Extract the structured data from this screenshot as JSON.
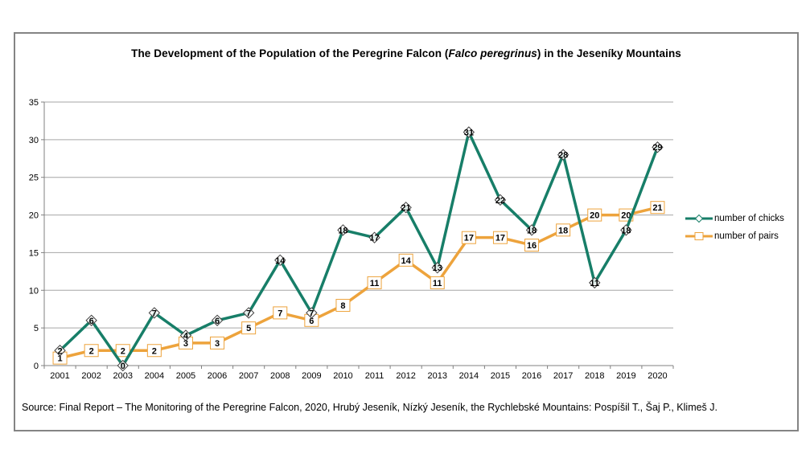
{
  "title": {
    "prefix": "The Development of the Population of the Peregrine Falcon (",
    "italic": "Falco peregrinus",
    "suffix": ") in the Jeseníky Mountains"
  },
  "legend": {
    "chicks": "number of chicks",
    "pairs": "number of pairs"
  },
  "source_note": "Source: Final Report – The Monitoring of the Peregrine Falcon, 2020, Hrubý Jeseník, Nízký Jeseník, the Rychlebské Mountains: Pospíšil T., Šaj P., Klimeš J.",
  "colors": {
    "chicks": "#177E68",
    "pairs": "#EDA33C",
    "gridline": "#A6A6A6",
    "axis": "#808080",
    "marker_stroke": "#404040",
    "label_text": "#000000",
    "frame_border": "#848484"
  },
  "chart_data": {
    "type": "line",
    "x": [
      2001,
      2002,
      2003,
      2004,
      2005,
      2006,
      2007,
      2008,
      2009,
      2010,
      2011,
      2012,
      2013,
      2014,
      2015,
      2016,
      2017,
      2018,
      2019,
      2020
    ],
    "series": [
      {
        "name": "number of chicks",
        "marker": "diamond",
        "values": [
          2,
          6,
          0,
          7,
          4,
          6,
          7,
          14,
          7,
          18,
          17,
          21,
          13,
          31,
          22,
          18,
          28,
          11,
          18,
          29
        ]
      },
      {
        "name": "number of pairs",
        "marker": "square",
        "values": [
          1,
          2,
          2,
          2,
          3,
          3,
          5,
          7,
          6,
          8,
          11,
          14,
          11,
          17,
          17,
          16,
          18,
          20,
          20,
          21
        ]
      }
    ],
    "ylim": [
      0,
      35
    ],
    "yticks": [
      0,
      5,
      10,
      15,
      20,
      25,
      30,
      35
    ],
    "grid": true,
    "data_labels": true,
    "legend_position": "right"
  }
}
